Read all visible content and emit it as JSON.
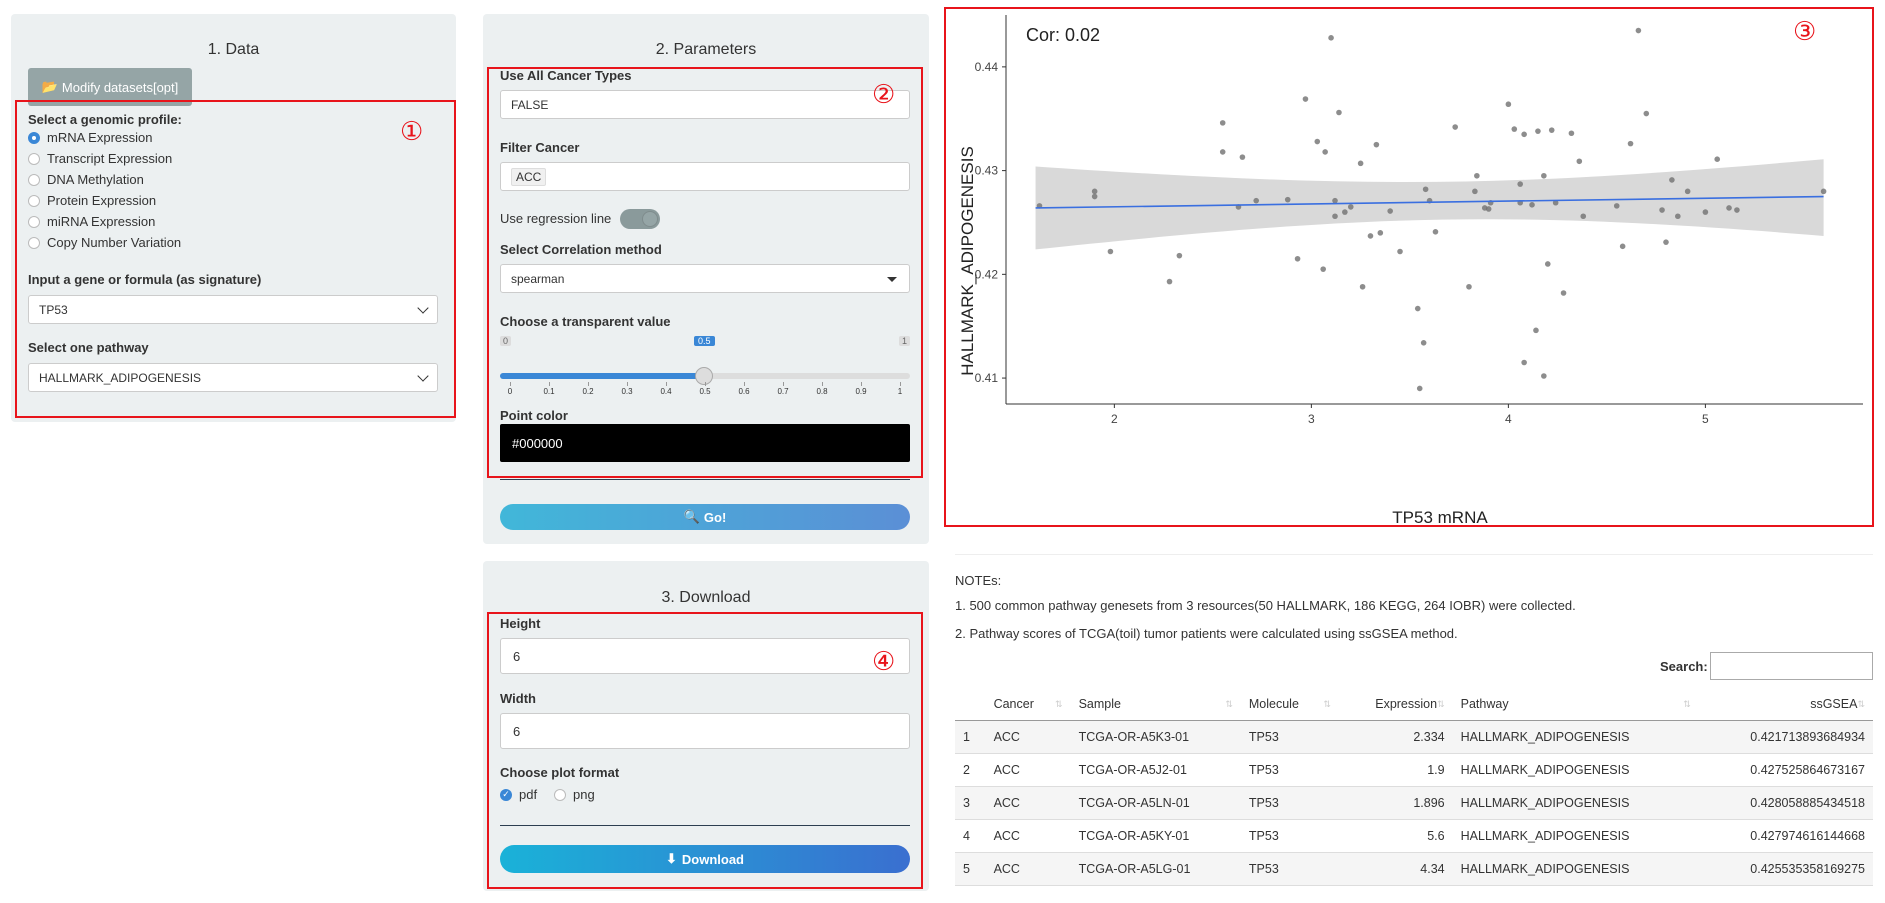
{
  "panel1": {
    "title": "1. Data",
    "modify_button": "Modify datasets[opt]",
    "genomic_label": "Select a genomic profile:",
    "profiles": [
      "mRNA Expression",
      "Transcript Expression",
      "DNA Methylation",
      "Protein Expression",
      "miRNA Expression",
      "Copy Number Variation"
    ],
    "selected_profile_index": 0,
    "gene_label": "Input a gene or formula (as signature)",
    "gene_value": "TP53",
    "pathway_label": "Select one pathway",
    "pathway_value": "HALLMARK_ADIPOGENESIS",
    "annotation": "①"
  },
  "panel2": {
    "title": "2. Parameters",
    "use_all_label": "Use All Cancer Types",
    "use_all_value": "FALSE",
    "filter_label": "Filter Cancer",
    "filter_value": "ACC",
    "regression_label": "Use regression line",
    "regression_on": true,
    "method_label": "Select Correlation method",
    "method_value": "spearman",
    "alpha_label": "Choose a transparent value",
    "alpha_min": "0",
    "alpha_max": "1",
    "alpha_value": "0.5",
    "alpha_ticks": [
      "0",
      "0.1",
      "0.2",
      "0.3",
      "0.4",
      "0.5",
      "0.6",
      "0.7",
      "0.8",
      "0.9",
      "1"
    ],
    "point_color_label": "Point color",
    "point_color_value": "#000000",
    "go_button": "Go!",
    "annotation": "②"
  },
  "panel3": {
    "title": "3. Download",
    "height_label": "Height",
    "height_value": "6",
    "width_label": "Width",
    "width_value": "6",
    "format_label": "Choose plot format",
    "formats": [
      "pdf",
      "png"
    ],
    "selected_format": "pdf",
    "download_button": "Download",
    "annotation": "④"
  },
  "plot": {
    "annotation": "③",
    "cor_text": "Cor: 0.02"
  },
  "chart_data": {
    "type": "scatter",
    "title": "",
    "xlabel": "TP53 mRNA",
    "ylabel": "HALLMARK_ADIPOGENESIS",
    "xlim": [
      1.45,
      5.8
    ],
    "ylim": [
      0.4075,
      0.445
    ],
    "x_ticks": [
      "2",
      "3",
      "4",
      "5"
    ],
    "y_ticks": [
      "0.41",
      "0.42",
      "0.43",
      "0.44"
    ],
    "point_color": "#707070",
    "line_color": "#3a6fe0",
    "band_color": "#d9d9d9",
    "regression": {
      "x": [
        1.6,
        5.6
      ],
      "y": [
        0.4264,
        0.4275
      ],
      "band_low_edges": [
        0.4224,
        0.4258,
        0.4262,
        0.4237
      ],
      "band_high_edges": [
        0.4304,
        0.4282,
        0.4284,
        0.4311
      ],
      "band_x": [
        1.6,
        3.3,
        4.0,
        5.6
      ]
    },
    "points": [
      [
        1.62,
        0.4266
      ],
      [
        1.9,
        0.428
      ],
      [
        1.9,
        0.4275
      ],
      [
        1.98,
        0.4222
      ],
      [
        2.28,
        0.4193
      ],
      [
        2.33,
        0.4218
      ],
      [
        2.55,
        0.4346
      ],
      [
        2.55,
        0.4318
      ],
      [
        2.63,
        0.4265
      ],
      [
        2.65,
        0.4313
      ],
      [
        2.72,
        0.4271
      ],
      [
        2.88,
        0.4272
      ],
      [
        2.93,
        0.4215
      ],
      [
        2.97,
        0.4369
      ],
      [
        3.03,
        0.4328
      ],
      [
        3.06,
        0.4205
      ],
      [
        3.07,
        0.4318
      ],
      [
        3.1,
        0.4428
      ],
      [
        3.12,
        0.4256
      ],
      [
        3.12,
        0.4271
      ],
      [
        3.14,
        0.4356
      ],
      [
        3.17,
        0.426
      ],
      [
        3.2,
        0.4265
      ],
      [
        3.25,
        0.4307
      ],
      [
        3.26,
        0.4188
      ],
      [
        3.3,
        0.4237
      ],
      [
        3.33,
        0.4325
      ],
      [
        3.35,
        0.424
      ],
      [
        3.4,
        0.4261
      ],
      [
        3.45,
        0.4222
      ],
      [
        3.54,
        0.4167
      ],
      [
        3.55,
        0.409
      ],
      [
        3.57,
        0.4134
      ],
      [
        3.58,
        0.4282
      ],
      [
        3.6,
        0.4271
      ],
      [
        3.63,
        0.4241
      ],
      [
        3.73,
        0.4342
      ],
      [
        3.8,
        0.4188
      ],
      [
        3.83,
        0.428
      ],
      [
        3.84,
        0.4295
      ],
      [
        3.88,
        0.4264
      ],
      [
        3.9,
        0.4263
      ],
      [
        3.91,
        0.4269
      ],
      [
        4.0,
        0.4364
      ],
      [
        4.03,
        0.434
      ],
      [
        4.06,
        0.4287
      ],
      [
        4.06,
        0.4269
      ],
      [
        4.08,
        0.4335
      ],
      [
        4.08,
        0.4115
      ],
      [
        4.12,
        0.4267
      ],
      [
        4.14,
        0.4146
      ],
      [
        4.15,
        0.4338
      ],
      [
        4.18,
        0.4102
      ],
      [
        4.18,
        0.4295
      ],
      [
        4.2,
        0.421
      ],
      [
        4.22,
        0.4339
      ],
      [
        4.24,
        0.4269
      ],
      [
        4.28,
        0.4182
      ],
      [
        4.32,
        0.4336
      ],
      [
        4.36,
        0.4309
      ],
      [
        4.38,
        0.4256
      ],
      [
        4.55,
        0.4266
      ],
      [
        4.58,
        0.4227
      ],
      [
        4.62,
        0.4326
      ],
      [
        4.66,
        0.4435
      ],
      [
        4.7,
        0.4355
      ],
      [
        4.78,
        0.4262
      ],
      [
        4.8,
        0.4231
      ],
      [
        4.83,
        0.4291
      ],
      [
        4.86,
        0.4256
      ],
      [
        4.91,
        0.428
      ],
      [
        5.0,
        0.426
      ],
      [
        5.06,
        0.4311
      ],
      [
        5.12,
        0.4264
      ],
      [
        5.16,
        0.4262
      ],
      [
        5.6,
        0.428
      ]
    ]
  },
  "notes": {
    "heading": "NOTEs:",
    "line1": "1. 500 common pathway genesets from 3 resources(50 HALLMARK, 186 KEGG, 264 IOBR) were collected.",
    "line2": "2. Pathway scores of TCGA(toil) tumor patients were calculated using ssGSEA method."
  },
  "table": {
    "search_label": "Search:",
    "columns": [
      "",
      "Cancer",
      "Sample",
      "Molecule",
      "Expression",
      "Pathway",
      "ssGSEA"
    ],
    "rows": [
      [
        "1",
        "ACC",
        "TCGA-OR-A5K3-01",
        "TP53",
        "2.334",
        "HALLMARK_ADIPOGENESIS",
        "0.421713893684934"
      ],
      [
        "2",
        "ACC",
        "TCGA-OR-A5J2-01",
        "TP53",
        "1.9",
        "HALLMARK_ADIPOGENESIS",
        "0.427525864673167"
      ],
      [
        "3",
        "ACC",
        "TCGA-OR-A5LN-01",
        "TP53",
        "1.896",
        "HALLMARK_ADIPOGENESIS",
        "0.428058885434518"
      ],
      [
        "4",
        "ACC",
        "TCGA-OR-A5KY-01",
        "TP53",
        "5.6",
        "HALLMARK_ADIPOGENESIS",
        "0.427974616144668"
      ],
      [
        "5",
        "ACC",
        "TCGA-OR-A5LG-01",
        "TP53",
        "4.34",
        "HALLMARK_ADIPOGENESIS",
        "0.425535358169275"
      ]
    ]
  }
}
